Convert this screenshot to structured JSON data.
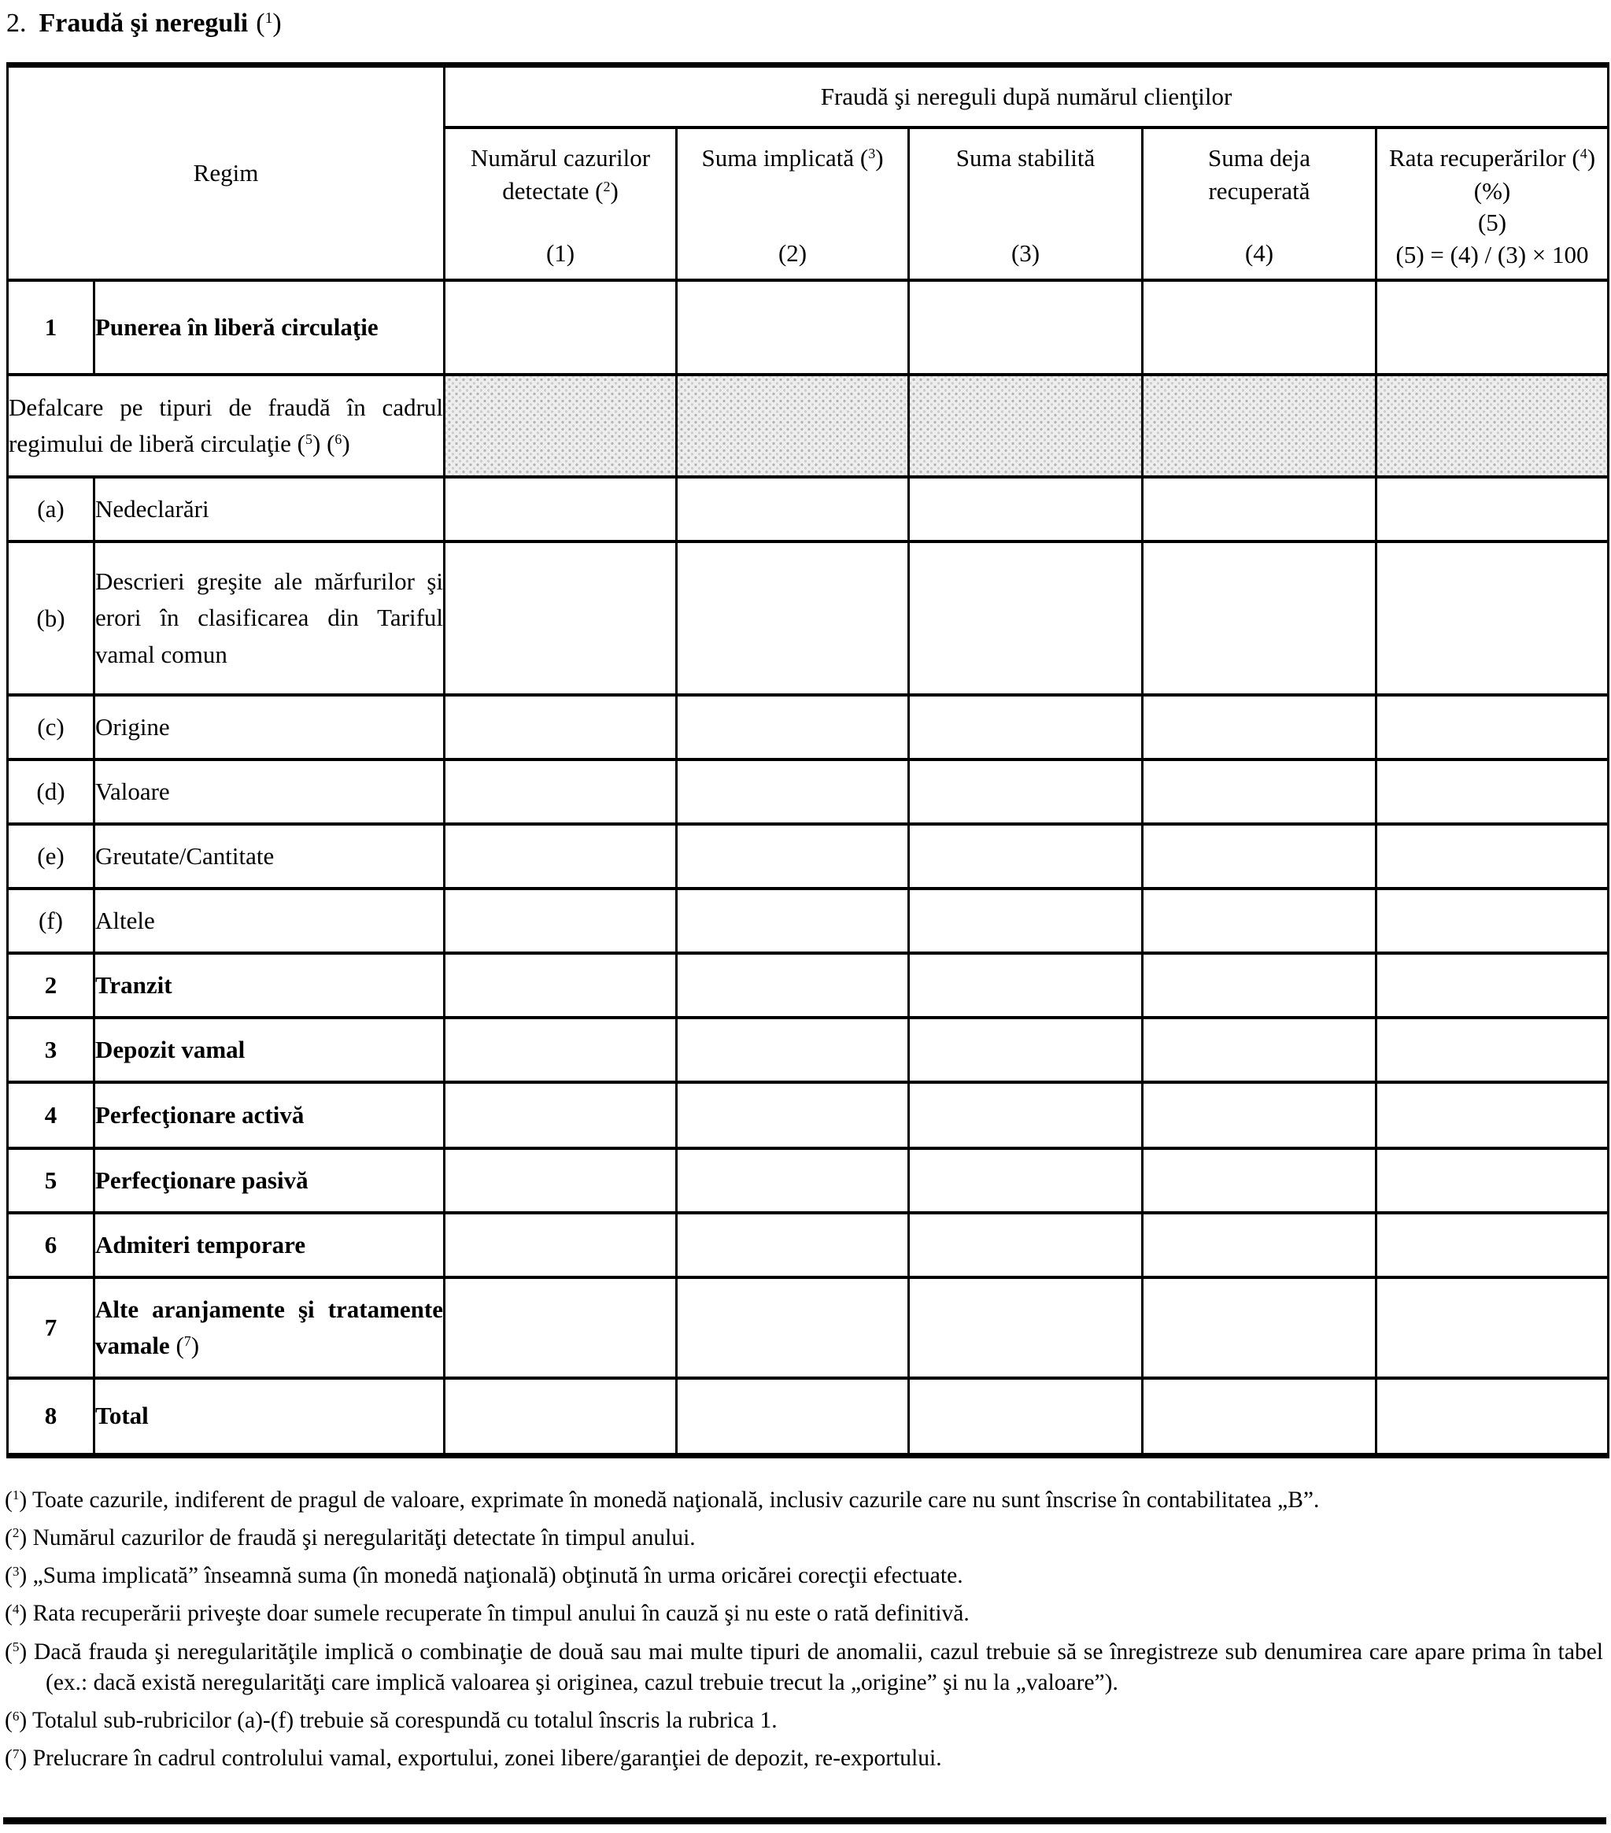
{
  "title": {
    "number": "2.",
    "text": "Fraudă şi nereguli",
    "footnote_ref": "1"
  },
  "table": {
    "regim_header": "Regim",
    "group_header": "Fraudă şi nereguli după numărul clienţilor",
    "columns": [
      {
        "lines": [
          "Numărul cazurilor",
          "detectate"
        ],
        "ref": "2",
        "ref_after_line": 1,
        "index": "(1)"
      },
      {
        "lines": [
          "Suma implicată"
        ],
        "ref": "3",
        "ref_after_line": 0,
        "index": "(2)"
      },
      {
        "lines": [
          "Suma stabilită"
        ],
        "index": "(3)"
      },
      {
        "lines": [
          "Suma deja",
          "recuperată"
        ],
        "index": "(4)"
      },
      {
        "lines": [
          "Rata recuperărilor",
          "(%)"
        ],
        "ref": "4",
        "ref_after_line": 0,
        "index": "(5)",
        "formula": "(5) = (4) / (3) × 100"
      }
    ],
    "empty_data_columns": 5,
    "rows": [
      {
        "num": "1",
        "label": "Punerea în liberă circulaţie",
        "bold": true,
        "type": "normal"
      },
      {
        "label": "Defalcare pe tipuri de fraudă în cadrul regimului de liberă circulaţie",
        "refs": [
          "5",
          "6"
        ],
        "type": "breakdown"
      },
      {
        "num": "(a)",
        "label": "Nedeclarări",
        "bold": false,
        "type": "normal"
      },
      {
        "num": "(b)",
        "label": "Descrieri greşite ale mărfurilor şi erori în clasificarea din Tariful vamal comun",
        "bold": false,
        "type": "normal"
      },
      {
        "num": "(c)",
        "label": "Origine",
        "bold": false,
        "type": "normal"
      },
      {
        "num": "(d)",
        "label": "Valoare",
        "bold": false,
        "type": "normal"
      },
      {
        "num": "(e)",
        "label": "Greutate/Cantitate",
        "bold": false,
        "type": "normal"
      },
      {
        "num": "(f)",
        "label": "Altele",
        "bold": false,
        "type": "normal"
      },
      {
        "num": "2",
        "label": "Tranzit",
        "bold": true,
        "type": "normal"
      },
      {
        "num": "3",
        "label": "Depozit vamal",
        "bold": true,
        "type": "normal"
      },
      {
        "num": "4",
        "label": "Perfecţionare activă",
        "bold": true,
        "type": "normal"
      },
      {
        "num": "5",
        "label": "Perfecţionare pasivă",
        "bold": true,
        "type": "normal"
      },
      {
        "num": "6",
        "label": "Admiteri temporare",
        "bold": true,
        "type": "normal"
      },
      {
        "num": "7",
        "label": "Alte aranjamente şi tratamente vamale",
        "refs": [
          "7"
        ],
        "bold": true,
        "type": "normal"
      },
      {
        "num": "8",
        "label": "Total",
        "bold": true,
        "type": "normal"
      }
    ]
  },
  "footnotes": [
    {
      "ref": "1",
      "text": "Toate cazurile, indiferent de pragul de valoare, exprimate în monedă naţională, inclusiv cazurile care nu sunt înscrise în contabilitatea „B”."
    },
    {
      "ref": "2",
      "text": "Numărul cazurilor de fraudă şi neregularităţi detectate în timpul anului."
    },
    {
      "ref": "3",
      "text": "„Suma implicată” înseamnă suma (în monedă naţională) obţinută în urma oricărei corecţii efectuate."
    },
    {
      "ref": "4",
      "text": "Rata recuperării priveşte doar sumele recuperate în timpul anului în cauză şi nu este o rată definitivă."
    },
    {
      "ref": "5",
      "text": "Dacă frauda şi neregularităţile implică o combinaţie de două sau mai multe tipuri de anomalii, cazul trebuie să se înregistreze sub denumirea care apare prima în tabel (ex.: dacă există neregularităţi care implică valoarea şi originea, cazul trebuie trecut la „origine” şi nu la „valoare”)."
    },
    {
      "ref": "6",
      "text": "Totalul sub-rubricilor (a)-(f) trebuie să corespundă cu totalul înscris la rubrica 1."
    },
    {
      "ref": "7",
      "text": "Prelucrare în cadrul controlului vamal, exportului, zonei libere/garanţiei de depozit, re-exportului."
    }
  ],
  "colors": {
    "text": "#000000",
    "border": "#000000",
    "background": "#ffffff",
    "shaded_fill": "#eeeeee",
    "shaded_dot": "#b5b5b5"
  }
}
